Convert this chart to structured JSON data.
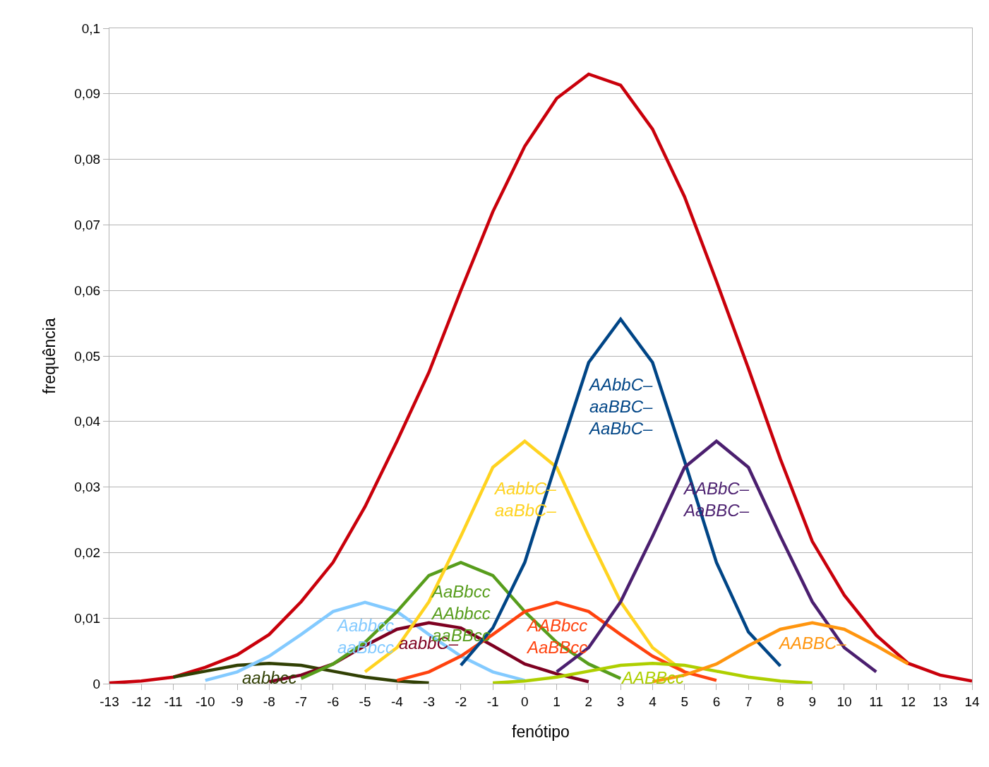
{
  "chart_data": {
    "type": "line",
    "xlabel": "fenótipo",
    "ylabel": "frequência",
    "xlim": [
      -13,
      14
    ],
    "xticks": [
      -13,
      -12,
      -11,
      -10,
      -9,
      -8,
      -7,
      -6,
      -5,
      -4,
      -3,
      -2,
      -1,
      0,
      1,
      2,
      3,
      4,
      5,
      6,
      7,
      8,
      9,
      10,
      11,
      12,
      13,
      14
    ],
    "ylim": [
      0,
      0.1
    ],
    "yticks": [
      0,
      {
        "value": 0.01,
        "label": "0,01"
      },
      {
        "value": 0.02,
        "label": "0,02"
      },
      {
        "value": 0.03,
        "label": "0,03"
      },
      {
        "value": 0.04,
        "label": "0,04"
      },
      {
        "value": 0.05,
        "label": "0,05"
      },
      {
        "value": 0.06,
        "label": "0,06"
      },
      {
        "value": 0.07,
        "label": "0,07"
      },
      {
        "value": 0.08,
        "label": "0,08"
      },
      {
        "value": 0.09,
        "label": "0,09"
      },
      {
        "value": 0.1,
        "label": "0,1"
      }
    ],
    "grid": "y",
    "legend": false,
    "series": [
      {
        "color": "#c9000b",
        "x": [
          -13,
          -12,
          -11,
          -10,
          -9,
          -8,
          -7,
          -6,
          -5,
          -4,
          -3,
          -2,
          -1,
          0,
          1,
          2,
          3,
          4,
          5,
          6,
          7,
          8,
          9,
          10,
          11,
          12,
          13,
          14
        ],
        "values": [
          0.0001,
          0.0004,
          0.001,
          0.0025,
          0.0044,
          0.0075,
          0.0125,
          0.0185,
          0.027,
          0.037,
          0.0475,
          0.06,
          0.072,
          0.082,
          0.0893,
          0.093,
          0.0913,
          0.0846,
          0.0743,
          0.0614,
          0.0481,
          0.0343,
          0.0217,
          0.0135,
          0.0074,
          0.0031,
          0.0013,
          0.0004
        ]
      },
      {
        "name": "aabbcc",
        "color": "#314004",
        "x": [
          -11,
          -10,
          -9,
          -8,
          -7,
          -6,
          -5,
          -4,
          -3
        ],
        "values": [
          0.001,
          0.0019,
          0.0028,
          0.0031,
          0.0028,
          0.0019,
          0.001,
          0.0004,
          0.0001
        ]
      },
      {
        "name": "Aabbcc\naaBbcc",
        "color": "#83caff",
        "x": [
          -10,
          -9,
          -8,
          -7,
          -6,
          -5,
          -4,
          -3,
          -2,
          -1,
          0
        ],
        "values": [
          0.0005,
          0.0018,
          0.0042,
          0.0075,
          0.011,
          0.0124,
          0.011,
          0.0075,
          0.0042,
          0.0018,
          0.0005
        ]
      },
      {
        "name": "aabbC–",
        "color": "#7e0021",
        "x": [
          -8,
          -7,
          -6,
          -5,
          -4,
          -3,
          -2,
          -1,
          0,
          1,
          2
        ],
        "values": [
          0.0003,
          0.0013,
          0.003,
          0.0058,
          0.0083,
          0.0093,
          0.0085,
          0.0058,
          0.003,
          0.0015,
          0.0003
        ]
      },
      {
        "name": "AaBbcc\nAAbbcc\naaBBcc",
        "color": "#579d1c",
        "x": [
          -7,
          -6,
          -5,
          -4,
          -3,
          -2,
          -1,
          0,
          1,
          2,
          3
        ],
        "values": [
          0.0008,
          0.003,
          0.0063,
          0.011,
          0.0165,
          0.0185,
          0.0165,
          0.011,
          0.0063,
          0.003,
          0.0008
        ]
      },
      {
        "name": "AabbC–\naaBbC–",
        "color": "#ffd320",
        "x": [
          -5,
          -4,
          -3,
          -2,
          -1,
          0,
          1,
          2,
          3,
          4,
          5
        ],
        "values": [
          0.0018,
          0.0055,
          0.0125,
          0.0225,
          0.033,
          0.037,
          0.033,
          0.0225,
          0.0125,
          0.0055,
          0.0018
        ]
      },
      {
        "name": "AABbcc\nAaBBcc",
        "color": "#ff420e",
        "x": [
          -4,
          -3,
          -2,
          -1,
          0,
          1,
          2,
          3,
          4,
          5,
          6
        ],
        "values": [
          0.0005,
          0.0018,
          0.0042,
          0.0075,
          0.011,
          0.0124,
          0.011,
          0.0075,
          0.0042,
          0.0018,
          0.0005
        ]
      },
      {
        "name": "AAbbC–\naaBBC–\nAaBbC–",
        "color": "#004586",
        "x": [
          -2,
          -1,
          0,
          1,
          2,
          3,
          4,
          5,
          6,
          7,
          8
        ],
        "values": [
          0.0028,
          0.0085,
          0.0185,
          0.034,
          0.049,
          0.0556,
          0.049,
          0.034,
          0.0185,
          0.0079,
          0.0027
        ]
      },
      {
        "name": "AABBcc",
        "color": "#aecf00",
        "x": [
          -1,
          0,
          1,
          2,
          3,
          4,
          5,
          6,
          7,
          8,
          9
        ],
        "values": [
          0.0001,
          0.0004,
          0.001,
          0.0019,
          0.0028,
          0.0031,
          0.0028,
          0.0019,
          0.001,
          0.0004,
          0.0001
        ]
      },
      {
        "name": "AABbC–\nAaBBC–",
        "color": "#4b1f6f",
        "x": [
          1,
          2,
          3,
          4,
          5,
          6,
          7,
          8,
          9,
          10,
          11
        ],
        "values": [
          0.0018,
          0.0055,
          0.0125,
          0.0225,
          0.033,
          0.037,
          0.033,
          0.0225,
          0.0125,
          0.0055,
          0.0018
        ]
      },
      {
        "name": "AABBC–",
        "color": "#ff950e",
        "x": [
          4,
          5,
          6,
          7,
          8,
          9,
          10,
          11,
          12
        ],
        "values": [
          0.0003,
          0.0013,
          0.003,
          0.0058,
          0.0083,
          0.0093,
          0.0083,
          0.0058,
          0.003
        ]
      }
    ]
  }
}
